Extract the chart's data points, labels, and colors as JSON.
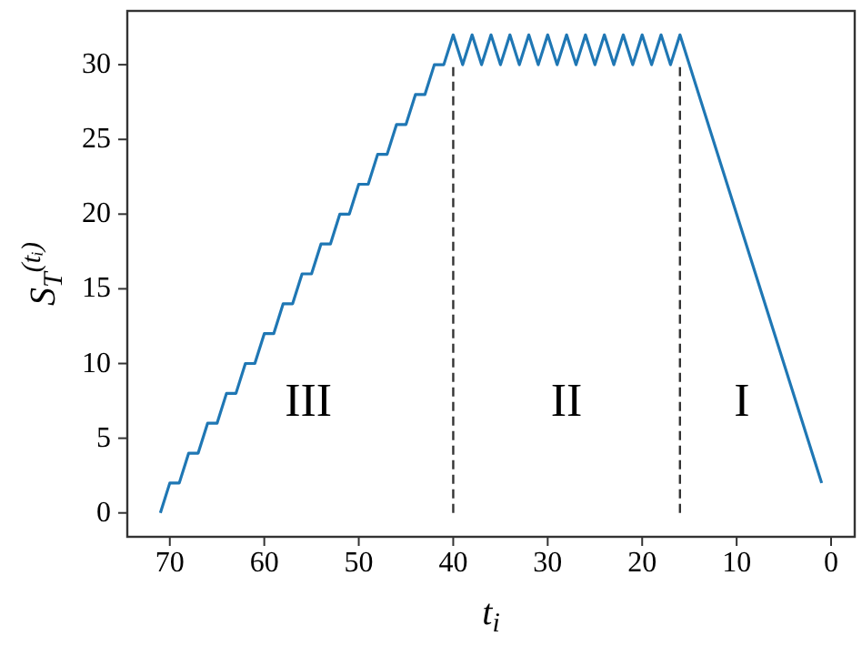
{
  "chart_data": {
    "type": "line",
    "xlabel": "t$_{i}$",
    "ylabel": "S$_{T}$$^{(tᵢ)}$",
    "xlim": [
      74.5,
      -2.5
    ],
    "ylim": [
      -1.6,
      33.6
    ],
    "xticks": [
      70,
      60,
      50,
      40,
      30,
      20,
      10,
      0
    ],
    "yticks": [
      0,
      5,
      10,
      15,
      20,
      25,
      30
    ],
    "marker": "none",
    "series": [
      {
        "color": "#1f77b4",
        "x": [
          71,
          70,
          69,
          68,
          67,
          66,
          65,
          64,
          63,
          62,
          61,
          60,
          59,
          58,
          57,
          56,
          55,
          54,
          53,
          52,
          51,
          50,
          49,
          48,
          47,
          46,
          45,
          44,
          43,
          42,
          41,
          40,
          39,
          38,
          37,
          36,
          35,
          34,
          33,
          32,
          31,
          30,
          29,
          28,
          27,
          26,
          25,
          24,
          23,
          22,
          21,
          20,
          19,
          18,
          17,
          16,
          1
        ],
        "values": [
          0,
          2,
          2,
          4,
          4,
          6,
          6,
          8,
          8,
          10,
          10,
          12,
          12,
          14,
          14,
          16,
          16,
          18,
          18,
          20,
          20,
          22,
          22,
          24,
          24,
          26,
          26,
          28,
          28,
          30,
          30,
          32,
          30,
          32,
          30,
          32,
          30,
          32,
          30,
          32,
          30,
          32,
          30,
          32,
          30,
          32,
          30,
          32,
          30,
          32,
          30,
          32,
          30,
          32,
          30,
          32,
          2
        ]
      }
    ],
    "ref_lines": [
      {
        "axis": "x",
        "value": 40,
        "color": "#333333",
        "line_style": "dashed"
      },
      {
        "axis": "x",
        "value": 16,
        "color": "#333333",
        "line_style": "dashed"
      }
    ],
    "annotations": [
      "III",
      "II",
      "I"
    ]
  }
}
